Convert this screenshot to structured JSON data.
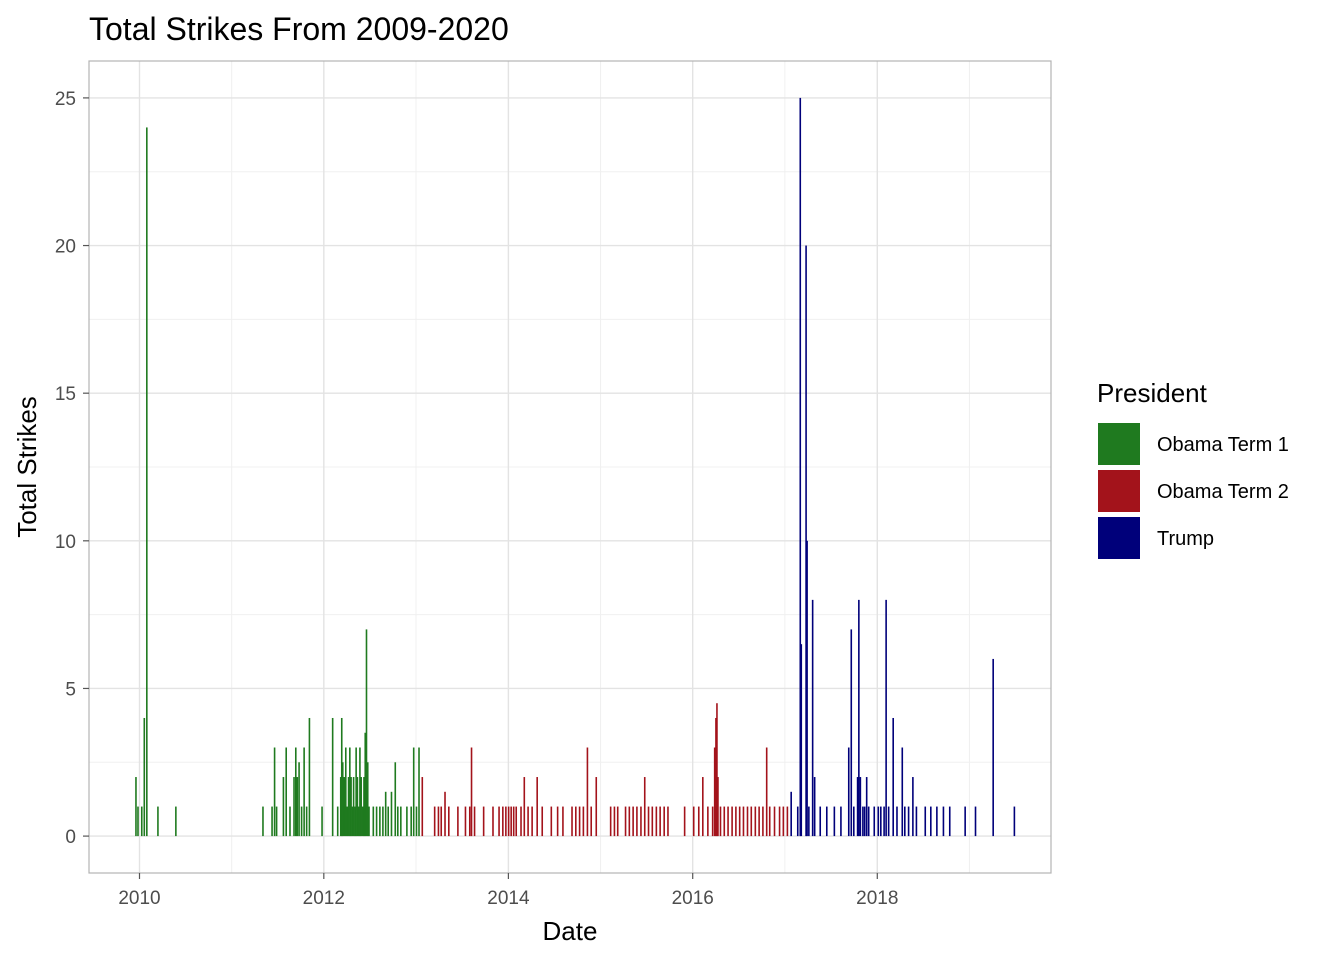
{
  "chart_data": {
    "type": "bar",
    "title": "Total Strikes From 2009-2020",
    "xlabel": "Date",
    "ylabel": "Total Strikes",
    "x_axis_type": "date",
    "xlim": [
      "2009-06-15",
      "2019-11-20"
    ],
    "ylim": [
      -1.25,
      26.25
    ],
    "x_ticks": [
      {
        "date": "2010-01-01",
        "label": "2010"
      },
      {
        "date": "2012-01-01",
        "label": "2012"
      },
      {
        "date": "2014-01-01",
        "label": "2014"
      },
      {
        "date": "2016-01-01",
        "label": "2016"
      },
      {
        "date": "2018-01-01",
        "label": "2018"
      }
    ],
    "y_ticks": [
      0,
      5,
      10,
      15,
      20,
      25
    ],
    "grid": true,
    "legend": {
      "title": "President",
      "position": "right",
      "entries": [
        {
          "name": "Obama Term 1",
          "color": "#1F7A1F"
        },
        {
          "name": "Obama Term 2",
          "color": "#A3131B"
        },
        {
          "name": "Trump",
          "color": "#00007A"
        }
      ]
    },
    "series": [
      {
        "name": "Obama Term 1",
        "color": "#1F7A1F",
        "points": [
          [
            "2009-12-18",
            2
          ],
          [
            "2009-12-26",
            1
          ],
          [
            "2010-01-10",
            1
          ],
          [
            "2010-01-20",
            4
          ],
          [
            "2010-01-30",
            24
          ],
          [
            "2010-03-15",
            1
          ],
          [
            "2010-05-25",
            1
          ],
          [
            "2011-05-05",
            1
          ],
          [
            "2011-06-10",
            1
          ],
          [
            "2011-06-20",
            3
          ],
          [
            "2011-06-28",
            1
          ],
          [
            "2011-07-25",
            2
          ],
          [
            "2011-08-05",
            3
          ],
          [
            "2011-08-20",
            1
          ],
          [
            "2011-09-05",
            2
          ],
          [
            "2011-09-12",
            3
          ],
          [
            "2011-09-18",
            2
          ],
          [
            "2011-09-25",
            2.5
          ],
          [
            "2011-10-05",
            1
          ],
          [
            "2011-10-15",
            3
          ],
          [
            "2011-10-25",
            1
          ],
          [
            "2011-11-05",
            4
          ],
          [
            "2011-12-25",
            1
          ],
          [
            "2012-02-05",
            4
          ],
          [
            "2012-02-25",
            1
          ],
          [
            "2012-03-08",
            2
          ],
          [
            "2012-03-12",
            4
          ],
          [
            "2012-03-16",
            2.5
          ],
          [
            "2012-03-22",
            2
          ],
          [
            "2012-03-28",
            3
          ],
          [
            "2012-04-03",
            1
          ],
          [
            "2012-04-08",
            2
          ],
          [
            "2012-04-13",
            3
          ],
          [
            "2012-04-18",
            2
          ],
          [
            "2012-04-23",
            1
          ],
          [
            "2012-04-28",
            2
          ],
          [
            "2012-05-03",
            1
          ],
          [
            "2012-05-08",
            3
          ],
          [
            "2012-05-13",
            2
          ],
          [
            "2012-05-18",
            1
          ],
          [
            "2012-05-23",
            3
          ],
          [
            "2012-05-28",
            2
          ],
          [
            "2012-06-03",
            1
          ],
          [
            "2012-06-08",
            2
          ],
          [
            "2012-06-13",
            3.5
          ],
          [
            "2012-06-18",
            7
          ],
          [
            "2012-06-23",
            2.5
          ],
          [
            "2012-06-28",
            1
          ],
          [
            "2012-07-15",
            1
          ],
          [
            "2012-07-28",
            1
          ],
          [
            "2012-08-10",
            1
          ],
          [
            "2012-08-22",
            1
          ],
          [
            "2012-09-02",
            1.5
          ],
          [
            "2012-09-12",
            1
          ],
          [
            "2012-09-25",
            1.5
          ],
          [
            "2012-10-10",
            2.5
          ],
          [
            "2012-10-20",
            1
          ],
          [
            "2012-11-01",
            1
          ],
          [
            "2012-11-25",
            1
          ],
          [
            "2012-12-12",
            1
          ],
          [
            "2012-12-22",
            3
          ],
          [
            "2013-01-02",
            1
          ],
          [
            "2013-01-12",
            3
          ]
        ]
      },
      {
        "name": "Obama Term 2",
        "color": "#A3131B",
        "points": [
          [
            "2013-01-25",
            2
          ],
          [
            "2013-03-15",
            1
          ],
          [
            "2013-03-30",
            1
          ],
          [
            "2013-04-10",
            1
          ],
          [
            "2013-04-25",
            1.5
          ],
          [
            "2013-05-10",
            1
          ],
          [
            "2013-06-15",
            1
          ],
          [
            "2013-07-15",
            1
          ],
          [
            "2013-08-01",
            1
          ],
          [
            "2013-08-08",
            3
          ],
          [
            "2013-08-20",
            1
          ],
          [
            "2013-09-25",
            1
          ],
          [
            "2013-11-01",
            1
          ],
          [
            "2013-11-25",
            1
          ],
          [
            "2013-12-10",
            1
          ],
          [
            "2013-12-22",
            1
          ],
          [
            "2014-01-02",
            1
          ],
          [
            "2014-01-12",
            1
          ],
          [
            "2014-01-22",
            1
          ],
          [
            "2014-02-01",
            1
          ],
          [
            "2014-02-20",
            1
          ],
          [
            "2014-03-05",
            2
          ],
          [
            "2014-03-20",
            1
          ],
          [
            "2014-04-05",
            1
          ],
          [
            "2014-04-25",
            2
          ],
          [
            "2014-05-15",
            1
          ],
          [
            "2014-06-20",
            1
          ],
          [
            "2014-07-15",
            1
          ],
          [
            "2014-08-05",
            1
          ],
          [
            "2014-09-10",
            1
          ],
          [
            "2014-09-25",
            1
          ],
          [
            "2014-10-10",
            1
          ],
          [
            "2014-10-25",
            1
          ],
          [
            "2014-11-10",
            3
          ],
          [
            "2014-11-25",
            1
          ],
          [
            "2014-12-15",
            2
          ],
          [
            "2015-02-10",
            1
          ],
          [
            "2015-02-25",
            1
          ],
          [
            "2015-03-10",
            1
          ],
          [
            "2015-04-10",
            1
          ],
          [
            "2015-04-25",
            1
          ],
          [
            "2015-05-10",
            1
          ],
          [
            "2015-05-25",
            1
          ],
          [
            "2015-06-10",
            1
          ],
          [
            "2015-06-25",
            2
          ],
          [
            "2015-07-10",
            1
          ],
          [
            "2015-07-25",
            1
          ],
          [
            "2015-08-10",
            1
          ],
          [
            "2015-08-25",
            1
          ],
          [
            "2015-09-10",
            1
          ],
          [
            "2015-09-25",
            1
          ],
          [
            "2015-11-30",
            1
          ],
          [
            "2016-01-05",
            1
          ],
          [
            "2016-01-25",
            1
          ],
          [
            "2016-02-10",
            2
          ],
          [
            "2016-03-01",
            1
          ],
          [
            "2016-03-20",
            1
          ],
          [
            "2016-03-28",
            3
          ],
          [
            "2016-04-02",
            4
          ],
          [
            "2016-04-06",
            4.5
          ],
          [
            "2016-04-10",
            2
          ],
          [
            "2016-04-20",
            1
          ],
          [
            "2016-05-05",
            1
          ],
          [
            "2016-05-20",
            1
          ],
          [
            "2016-06-05",
            1
          ],
          [
            "2016-06-20",
            1
          ],
          [
            "2016-07-05",
            1
          ],
          [
            "2016-07-20",
            1
          ],
          [
            "2016-08-05",
            1
          ],
          [
            "2016-08-20",
            1
          ],
          [
            "2016-09-05",
            1
          ],
          [
            "2016-09-20",
            1
          ],
          [
            "2016-10-05",
            1
          ],
          [
            "2016-10-20",
            3
          ],
          [
            "2016-11-01",
            1
          ],
          [
            "2016-11-20",
            1
          ],
          [
            "2016-12-10",
            1
          ],
          [
            "2016-12-25",
            1
          ],
          [
            "2017-01-10",
            1
          ]
        ]
      },
      {
        "name": "Trump",
        "color": "#00007A",
        "points": [
          [
            "2017-01-25",
            1.5
          ],
          [
            "2017-02-20",
            1
          ],
          [
            "2017-03-02",
            25
          ],
          [
            "2017-03-06",
            6.5
          ],
          [
            "2017-03-25",
            20
          ],
          [
            "2017-03-29",
            10
          ],
          [
            "2017-04-05",
            1
          ],
          [
            "2017-04-20",
            8
          ],
          [
            "2017-04-28",
            2
          ],
          [
            "2017-05-20",
            1
          ],
          [
            "2017-06-15",
            1
          ],
          [
            "2017-07-15",
            1
          ],
          [
            "2017-08-10",
            1
          ],
          [
            "2017-09-10",
            3
          ],
          [
            "2017-09-20",
            7
          ],
          [
            "2017-09-30",
            1
          ],
          [
            "2017-10-15",
            2
          ],
          [
            "2017-10-20",
            8
          ],
          [
            "2017-10-26",
            2
          ],
          [
            "2017-11-05",
            1
          ],
          [
            "2017-11-12",
            1
          ],
          [
            "2017-11-20",
            2
          ],
          [
            "2017-11-28",
            1
          ],
          [
            "2017-12-20",
            1
          ],
          [
            "2018-01-05",
            1
          ],
          [
            "2018-01-15",
            1
          ],
          [
            "2018-01-28",
            1
          ],
          [
            "2018-02-05",
            8
          ],
          [
            "2018-02-15",
            1
          ],
          [
            "2018-03-05",
            4
          ],
          [
            "2018-03-20",
            1
          ],
          [
            "2018-04-10",
            3
          ],
          [
            "2018-04-20",
            1
          ],
          [
            "2018-05-05",
            1
          ],
          [
            "2018-05-22",
            2
          ],
          [
            "2018-06-05",
            1
          ],
          [
            "2018-07-10",
            1
          ],
          [
            "2018-08-01",
            1
          ],
          [
            "2018-08-25",
            1
          ],
          [
            "2018-09-20",
            1
          ],
          [
            "2018-10-15",
            1
          ],
          [
            "2018-12-15",
            1
          ],
          [
            "2019-01-25",
            1
          ],
          [
            "2019-04-05",
            6
          ],
          [
            "2019-06-28",
            1
          ]
        ]
      }
    ]
  }
}
